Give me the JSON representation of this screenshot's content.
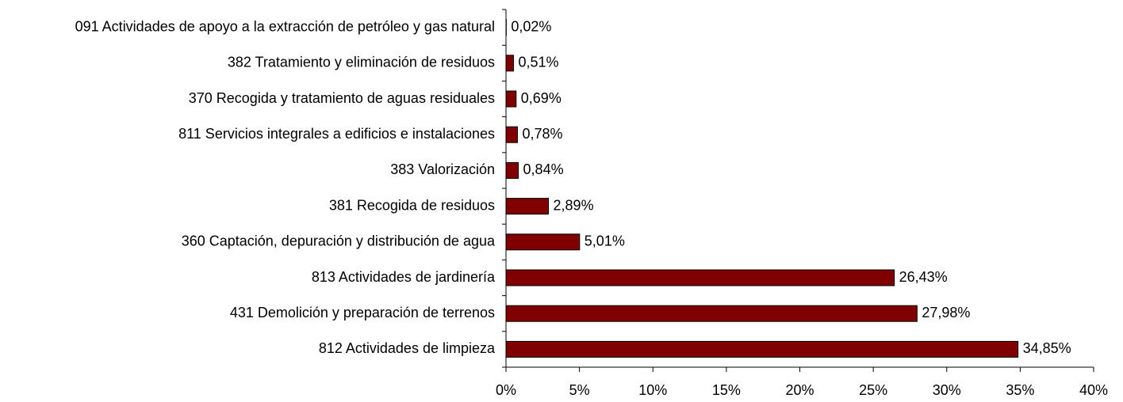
{
  "chart_data": {
    "type": "bar",
    "orientation": "horizontal",
    "categories": [
      "091 Actividades de apoyo a la extracción de petróleo y gas natural",
      "382 Tratamiento y eliminación de residuos",
      "370 Recogida y tratamiento de aguas residuales",
      "811 Servicios integrales a edificios e instalaciones",
      "383 Valorización",
      "381 Recogida de residuos",
      "360 Captación, depuración y distribución de agua",
      "813 Actividades de jardinería",
      "431 Demolición y preparación de terrenos",
      "812 Actividades de limpieza"
    ],
    "values": [
      0.02,
      0.51,
      0.69,
      0.78,
      0.84,
      2.89,
      5.01,
      26.43,
      27.98,
      34.85
    ],
    "value_labels": [
      "0,02%",
      "0,51%",
      "0,69%",
      "0,78%",
      "0,84%",
      "2,89%",
      "5,01%",
      "26,43%",
      "27,98%",
      "34,85%"
    ],
    "color": "#800000",
    "xlim": [
      0,
      40
    ],
    "xticks": [
      {
        "value": 0,
        "label": "0%"
      },
      {
        "value": 5,
        "label": "5%"
      },
      {
        "value": 10,
        "label": "10%"
      },
      {
        "value": 15,
        "label": "15%"
      },
      {
        "value": 20,
        "label": "20%"
      },
      {
        "value": 25,
        "label": "25%"
      },
      {
        "value": 30,
        "label": "30%"
      },
      {
        "value": 35,
        "label": "35%"
      },
      {
        "value": 40,
        "label": "40%"
      }
    ]
  }
}
